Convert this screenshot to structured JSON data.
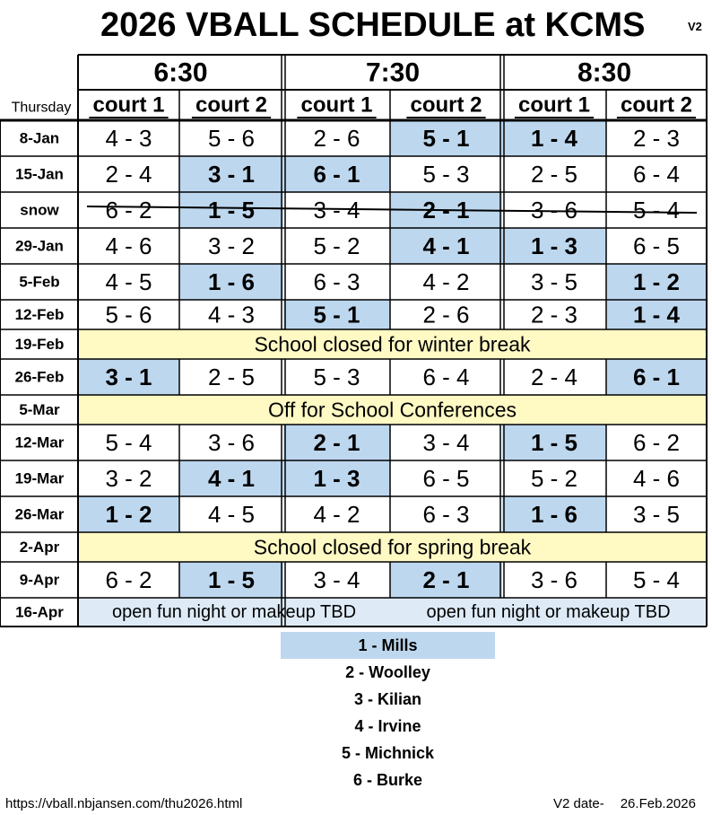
{
  "title": "2026 VBALL SCHEDULE at KCMS",
  "version": "V2",
  "day_label": "Thursday",
  "times": [
    "6:30",
    "7:30",
    "8:30"
  ],
  "court_label": [
    "court 1",
    "court 2"
  ],
  "rows": [
    {
      "date": "8-Jan",
      "games": [
        "4 - 3",
        "5 - 6",
        "2 - 6",
        "5 - 1",
        "1 - 4",
        "2 - 3"
      ]
    },
    {
      "date": "15-Jan",
      "games": [
        "2 - 4",
        "3 - 1",
        "6 - 1",
        "5 - 3",
        "2 - 5",
        "6 - 4"
      ]
    },
    {
      "date": "snow",
      "games": [
        "6 - 2",
        "1 - 5",
        "3 - 4",
        "2 - 1",
        "3 - 6",
        "5 - 4"
      ],
      "struck": true
    },
    {
      "date": "29-Jan",
      "games": [
        "4 - 6",
        "3 - 2",
        "5 - 2",
        "4 - 1",
        "1 - 3",
        "6 - 5"
      ]
    },
    {
      "date": "5-Feb",
      "games": [
        "4 - 5",
        "1 - 6",
        "6 - 3",
        "4 - 2",
        "3 - 5",
        "1 - 2"
      ]
    },
    {
      "date": "12-Feb",
      "games": [
        "5 - 6",
        "4 - 3",
        "5 - 1",
        "2 - 6",
        "2 - 3",
        "1 - 4"
      ]
    },
    {
      "date": "19-Feb",
      "note": "School closed for winter break"
    },
    {
      "date": "26-Feb",
      "games": [
        "3 - 1",
        "2 - 5",
        "5 - 3",
        "6 - 4",
        "2 - 4",
        "6 - 1"
      ]
    },
    {
      "date": "5-Mar",
      "note": "Off for School Conferences"
    },
    {
      "date": "12-Mar",
      "games": [
        "5 - 4",
        "3 - 6",
        "2 - 1",
        "3 - 4",
        "1 - 5",
        "6 - 2"
      ]
    },
    {
      "date": "19-Mar",
      "games": [
        "3 - 2",
        "4 - 1",
        "1 - 3",
        "6 - 5",
        "5 - 2",
        "4 - 6"
      ]
    },
    {
      "date": "26-Mar",
      "games": [
        "1 - 2",
        "4 - 5",
        "4 - 2",
        "6 - 3",
        "1 - 6",
        "3 - 5"
      ]
    },
    {
      "date": "2-Apr",
      "note": "School closed for spring break"
    },
    {
      "date": "9-Apr",
      "games": [
        "6 - 2",
        "1 - 5",
        "3 - 4",
        "2 - 1",
        "3 - 6",
        "5 - 4"
      ]
    },
    {
      "date": "16-Apr",
      "halves": [
        "open fun night or makeup TBD",
        "open fun night or makeup TBD"
      ]
    }
  ],
  "legend": [
    {
      "text": "1 - Mills",
      "highlight": true
    },
    {
      "text": "2 - Woolley"
    },
    {
      "text": "3 - Kilian"
    },
    {
      "text": "4 - Irvine"
    },
    {
      "text": "5 - Michnick"
    },
    {
      "text": "6 - Burke"
    }
  ],
  "footer": {
    "url": "https://vball.nbjansen.com/thu2026.html",
    "version_label": "V2 date-",
    "date": "26.Feb.2026"
  },
  "colors": {
    "highlight": "#bdd7ee",
    "note_bg": "#fff9c4",
    "open_bg": "#deebf7"
  }
}
